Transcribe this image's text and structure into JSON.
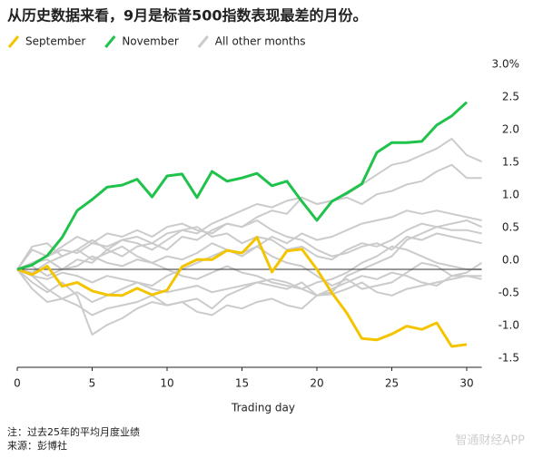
{
  "chart_data": {
    "type": "line",
    "title": "从历史数据来看，9月是标普500指数表现最差的月份。",
    "x_label": "Trading day",
    "note": "注：过去25年的平均月度业绩",
    "source": "来源：彭博社",
    "watermark": "智通财经APP",
    "x": [
      0,
      1,
      2,
      3,
      4,
      5,
      6,
      7,
      8,
      9,
      10,
      11,
      12,
      13,
      14,
      15,
      16,
      17,
      18,
      19,
      20,
      21,
      22,
      23,
      24,
      25,
      26,
      27,
      28,
      29,
      30,
      31
    ],
    "xlim": [
      0,
      31
    ],
    "xticks": [
      0,
      5,
      10,
      15,
      20,
      25,
      30
    ],
    "ylim": [
      -1.5,
      3.0
    ],
    "yticks": [
      {
        "value": 3.0,
        "label": "3.0%"
      },
      {
        "value": 2.5,
        "label": "2.5"
      },
      {
        "value": 2.0,
        "label": "2.0"
      },
      {
        "value": 1.5,
        "label": "1.5"
      },
      {
        "value": 1.0,
        "label": "1.0"
      },
      {
        "value": 0.5,
        "label": "0.5"
      },
      {
        "value": 0.0,
        "label": "0.0"
      },
      {
        "value": -0.5,
        "label": "-0.5"
      },
      {
        "value": -1.0,
        "label": "-1.0"
      },
      {
        "value": -1.5,
        "label": "-1.5"
      }
    ],
    "other_months": {
      "name": "All other months",
      "color": "#cbcbcb",
      "lines": [
        [
          0,
          0.1,
          0.2,
          0.3,
          0.25,
          0.4,
          0.35,
          0.45,
          0.5,
          0.4,
          0.55,
          0.6,
          0.55,
          0.7,
          0.8,
          0.9,
          1.0,
          0.95,
          1.05,
          1.1,
          1.0,
          1.05,
          1.15,
          1.3,
          1.45,
          1.6,
          1.65,
          1.75,
          1.85,
          2.0,
          1.75,
          1.65
        ],
        [
          0,
          0.05,
          -0.1,
          0.0,
          0.15,
          0.1,
          0.3,
          0.2,
          0.35,
          0.4,
          0.3,
          0.5,
          0.45,
          0.6,
          0.7,
          0.65,
          0.8,
          0.9,
          0.85,
          1.1,
          1.0,
          1.05,
          1.1,
          1.0,
          1.15,
          1.2,
          1.3,
          1.35,
          1.5,
          1.6,
          1.4,
          1.4
        ],
        [
          0,
          -0.1,
          -0.3,
          -0.45,
          -0.35,
          -0.5,
          -0.4,
          -0.3,
          -0.2,
          -0.25,
          -0.1,
          0.0,
          0.1,
          0.2,
          0.3,
          0.25,
          0.35,
          0.5,
          0.4,
          0.55,
          0.45,
          0.5,
          0.6,
          0.7,
          0.75,
          0.8,
          0.9,
          0.85,
          0.9,
          0.85,
          0.8,
          0.75
        ],
        [
          0,
          -0.3,
          -0.5,
          -0.45,
          -0.55,
          -0.7,
          -0.6,
          -0.55,
          -0.5,
          -0.4,
          -0.55,
          -0.5,
          -0.45,
          -0.6,
          -0.4,
          -0.3,
          -0.2,
          -0.25,
          -0.3,
          -0.2,
          -0.4,
          -0.35,
          -0.1,
          0.0,
          0.1,
          0.2,
          0.45,
          0.55,
          0.65,
          0.7,
          0.75,
          0.65
        ],
        [
          0,
          0.35,
          0.4,
          0.2,
          0.3,
          0.45,
          0.3,
          0.45,
          0.4,
          0.3,
          0.45,
          0.6,
          0.65,
          0.5,
          0.55,
          0.4,
          0.5,
          0.45,
          0.3,
          0.35,
          0.2,
          0.15,
          0.3,
          0.4,
          0.35,
          0.45,
          0.6,
          0.7,
          0.65,
          0.6,
          0.6,
          0.55
        ],
        [
          0,
          -0.2,
          -0.35,
          -0.2,
          -0.4,
          -1.0,
          -0.85,
          -0.75,
          -0.6,
          -0.5,
          -0.55,
          -0.5,
          -0.65,
          -0.7,
          -0.55,
          -0.6,
          -0.5,
          -0.45,
          -0.55,
          -0.6,
          -0.4,
          -0.3,
          -0.2,
          -0.1,
          -0.15,
          -0.05,
          -0.1,
          -0.2,
          -0.25,
          -0.1,
          -0.05,
          0.1
        ],
        [
          0,
          0.1,
          0.15,
          0.0,
          0.05,
          0.2,
          0.1,
          0.05,
          0.15,
          0.1,
          0.2,
          0.15,
          0.25,
          0.4,
          0.3,
          0.2,
          0.35,
          0.2,
          0.1,
          0.05,
          -0.1,
          -0.25,
          -0.15,
          -0.3,
          -0.25,
          -0.2,
          -0.05,
          0.1,
          0.05,
          -0.1,
          -0.1,
          -0.15
        ],
        [
          0,
          -0.1,
          -0.15,
          -0.05,
          -0.1,
          -0.2,
          -0.1,
          -0.15,
          -0.2,
          -0.3,
          -0.35,
          -0.3,
          -0.25,
          -0.35,
          -0.3,
          -0.25,
          -0.2,
          -0.15,
          -0.2,
          -0.3,
          -0.4,
          -0.38,
          -0.3,
          -0.2,
          -0.35,
          -0.4,
          -0.3,
          -0.25,
          -0.2,
          -0.15,
          -0.1,
          -0.1
        ],
        [
          0,
          0.3,
          0.2,
          0.35,
          0.5,
          0.4,
          0.55,
          0.5,
          0.6,
          0.5,
          0.65,
          0.7,
          0.6,
          0.55,
          0.7,
          0.65,
          0.75,
          0.6,
          0.5,
          0.45,
          0.3,
          0.2,
          0.25,
          0.35,
          0.4,
          0.3,
          0.5,
          0.45,
          0.55,
          0.5,
          0.45,
          0.4
        ],
        [
          0,
          -0.05,
          0.1,
          0.2,
          0.3,
          0.15,
          0.25,
          0.35,
          0.2,
          0.1,
          0.0,
          -0.1,
          -0.15,
          -0.05,
          0.05,
          -0.05,
          -0.1,
          -0.2,
          -0.25,
          -0.3,
          -0.2,
          -0.15,
          -0.05,
          0.1,
          0.2,
          0.35,
          0.3,
          0.2,
          0.1,
          0.05,
          0.0,
          0.0
        ]
      ]
    },
    "series": [
      {
        "name": "September",
        "color": "#f5c400",
        "values": [
          0,
          -0.08,
          0.05,
          -0.26,
          -0.2,
          -0.33,
          -0.39,
          -0.4,
          -0.29,
          -0.39,
          -0.32,
          0.04,
          0.15,
          0.15,
          0.29,
          0.25,
          0.49,
          -0.04,
          0.28,
          0.31,
          0,
          -0.36,
          -0.67,
          -1.06,
          -1.08,
          -0.99,
          -0.87,
          -0.92,
          -0.82,
          -1.18,
          -1.15,
          null
        ]
      },
      {
        "name": "November",
        "color": "#1fc24a",
        "values": [
          0,
          0.07,
          0.21,
          0.49,
          0.9,
          1.07,
          1.26,
          1.29,
          1.38,
          1.11,
          1.43,
          1.46,
          1.1,
          1.5,
          1.35,
          1.4,
          1.47,
          1.28,
          1.35,
          1.04,
          0.75,
          1.04,
          1.17,
          1.31,
          1.79,
          1.94,
          1.94,
          1.96,
          2.21,
          2.35,
          2.56,
          null
        ]
      }
    ]
  }
}
